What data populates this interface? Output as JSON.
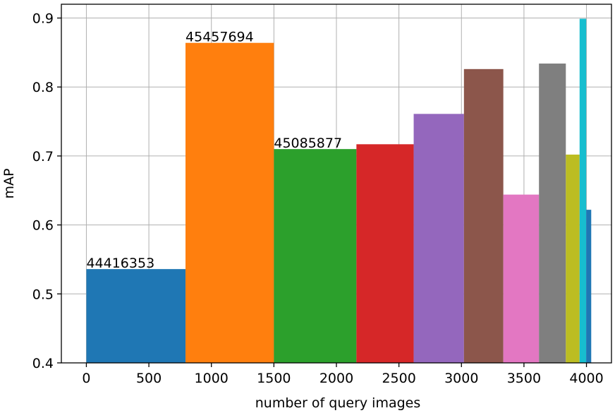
{
  "chart_data": {
    "type": "bar",
    "xlabel": "number of query images",
    "ylabel": "mAP",
    "xlim": [
      -200,
      4200
    ],
    "ylim": [
      0.4,
      0.92
    ],
    "grid": true,
    "x_ticks": [
      "0",
      "500",
      "1000",
      "1500",
      "2000",
      "2500",
      "3000",
      "3500",
      "4000"
    ],
    "y_ticks": [
      "0.4",
      "0.5",
      "0.6",
      "0.7",
      "0.8",
      "0.9"
    ],
    "bars": [
      {
        "x_start": 0,
        "x_end": 793,
        "value": 0.536,
        "label": "44416353",
        "color": "#1f77b4"
      },
      {
        "x_start": 793,
        "x_end": 1500,
        "value": 0.864,
        "label": "45457694",
        "color": "#ff7f0e"
      },
      {
        "x_start": 1500,
        "x_end": 2160,
        "value": 0.71,
        "label": "45085877",
        "color": "#2ca02c"
      },
      {
        "x_start": 2160,
        "x_end": 2618,
        "value": 0.717,
        "label": "",
        "color": "#d62728"
      },
      {
        "x_start": 2618,
        "x_end": 3020,
        "value": 0.761,
        "label": "",
        "color": "#9467bd"
      },
      {
        "x_start": 3020,
        "x_end": 3335,
        "value": 0.826,
        "label": "",
        "color": "#8c564b"
      },
      {
        "x_start": 3335,
        "x_end": 3620,
        "value": 0.644,
        "label": "",
        "color": "#e377c2"
      },
      {
        "x_start": 3620,
        "x_end": 3835,
        "value": 0.834,
        "label": "",
        "color": "#7f7f7f"
      },
      {
        "x_start": 3835,
        "x_end": 3945,
        "value": 0.702,
        "label": "",
        "color": "#bcbd22"
      },
      {
        "x_start": 3945,
        "x_end": 3998,
        "value": 0.899,
        "label": "",
        "color": "#17becf"
      },
      {
        "x_start": 3998,
        "x_end": 4038,
        "value": 0.622,
        "label": "",
        "color": "#1f77b4"
      }
    ]
  }
}
